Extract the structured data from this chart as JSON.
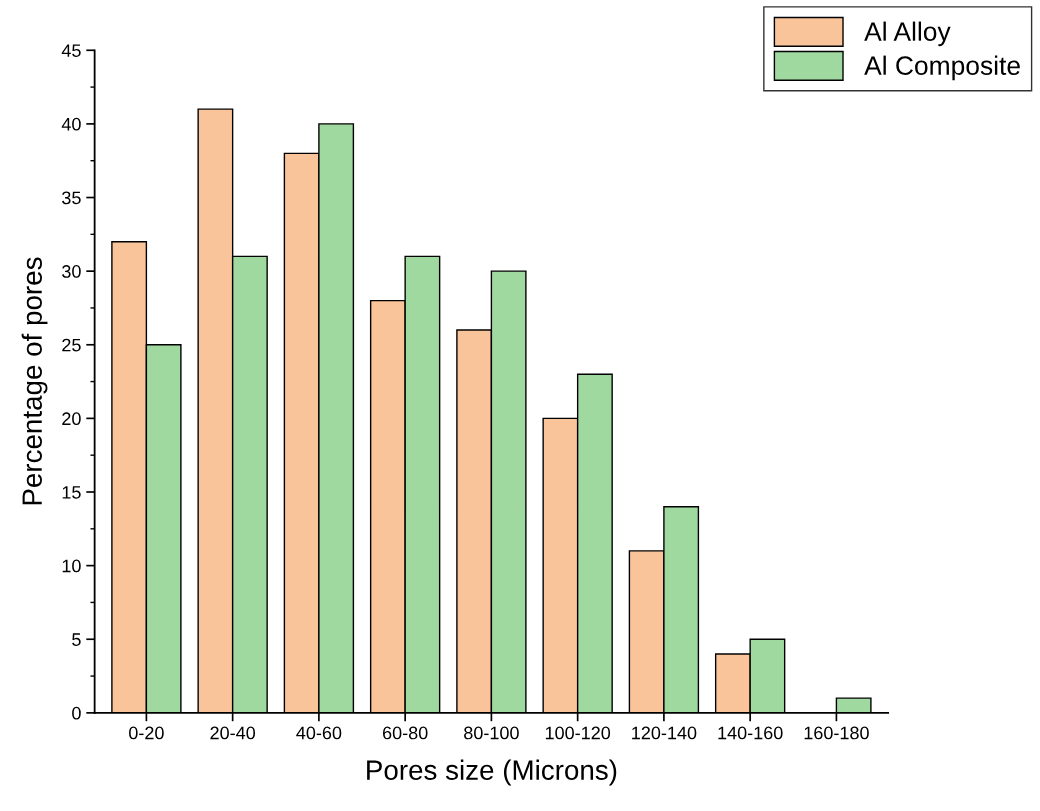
{
  "chart_data": {
    "type": "bar",
    "xlabel": "Pores size (Microns)",
    "ylabel": "Percentage of pores",
    "categories": [
      "0-20",
      "20-40",
      "40-60",
      "60-80",
      "80-100",
      "100-120",
      "120-140",
      "140-160",
      "160-180"
    ],
    "series": [
      {
        "name": "Al Alloy",
        "color": "#fac49a",
        "values": [
          32,
          41,
          38,
          28,
          26,
          20,
          11,
          4,
          null
        ]
      },
      {
        "name": "Al Composite",
        "color": "#a0d9a0",
        "values": [
          25,
          31,
          40,
          31,
          30,
          23,
          14,
          5,
          1
        ]
      }
    ],
    "ylim": [
      0,
      45
    ],
    "yticks": [
      0,
      5,
      10,
      15,
      20,
      25,
      30,
      35,
      40,
      45
    ],
    "grid": false,
    "legend": "top right"
  }
}
